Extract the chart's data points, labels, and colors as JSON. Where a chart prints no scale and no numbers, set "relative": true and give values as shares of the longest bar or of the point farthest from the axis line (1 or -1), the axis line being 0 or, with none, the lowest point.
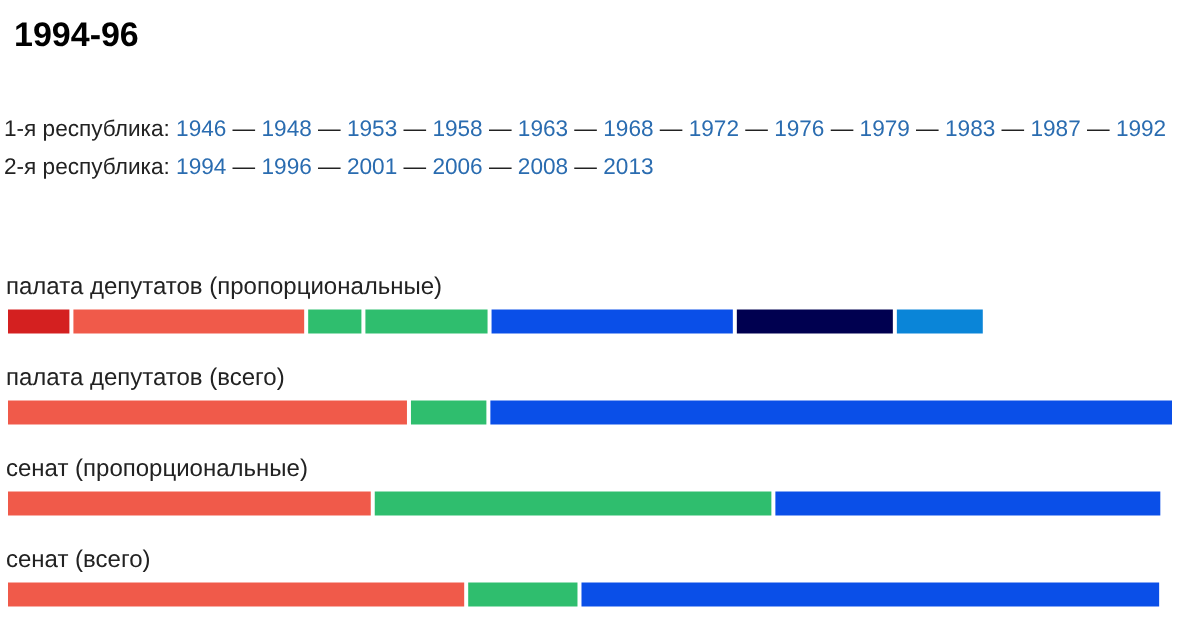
{
  "chart_data": {
    "type": "bar",
    "orientation": "horizontal",
    "stacked": true,
    "relative": true,
    "title": "1994-96",
    "annotations": [
      "1-я республика: 1946 — 1948 — 1953 — 1958 — 1963 — 1968 — 1972 — 1976 — 1979 — 1983 — 1987 — 1992",
      "2-я республика: 1994 — 1996 — 2001 — 2006 — 2008 — 2013"
    ],
    "categories": [
      "палата депутатов (пропорциональные)",
      "палата депутатов (всего)",
      "сенат (пропорциональные)",
      "сенат (всего)"
    ],
    "series": [
      {
        "color": "#d42020",
        "values": [
          0.056,
          null,
          null,
          null
        ]
      },
      {
        "color": "#f05a4a",
        "values": [
          0.201,
          0.345,
          0.314,
          0.394
        ]
      },
      {
        "color": "#2fbe6e",
        "values": [
          0.049,
          null,
          null,
          null
        ]
      },
      {
        "color": "#2fbe6e",
        "values": [
          0.108,
          0.068,
          0.343,
          0.097
        ]
      },
      {
        "color": "#0a4fe8",
        "values": [
          0.21,
          0.587,
          0.333,
          0.498
        ]
      },
      {
        "color": "#000050",
        "values": [
          0.137,
          null,
          null,
          null
        ]
      },
      {
        "color": "#0a85d8",
        "values": [
          0.077,
          null,
          null,
          null
        ]
      }
    ]
  }
}
